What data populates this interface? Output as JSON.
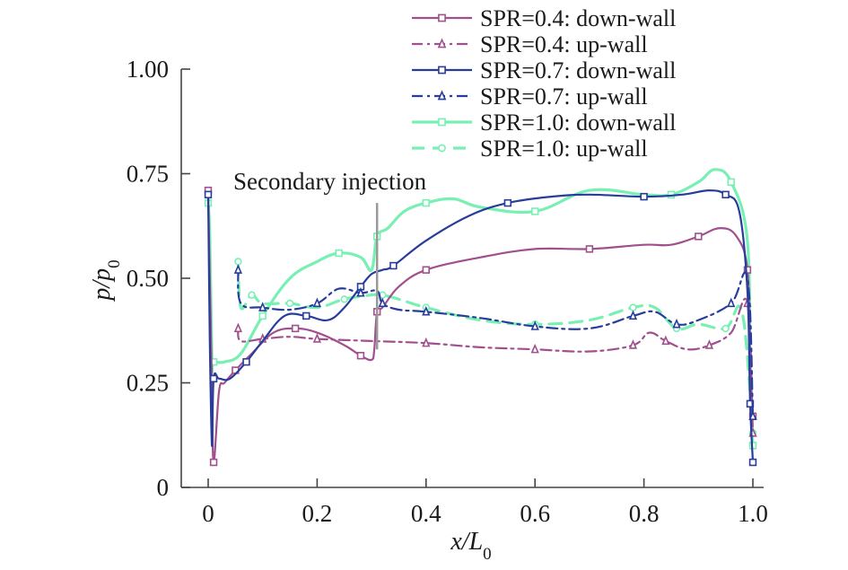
{
  "chart_data": {
    "type": "line",
    "title": "",
    "xlabel": "x/L0",
    "ylabel": "p/p0",
    "xlim": [
      -0.05,
      1.02
    ],
    "ylim": [
      0,
      1.0
    ],
    "xticks": [
      "0",
      "0.2",
      "0.4",
      "0.6",
      "0.8",
      "1.0"
    ],
    "xtick_values": [
      0,
      0.2,
      0.4,
      0.6,
      0.8,
      1.0
    ],
    "yticks": [
      "0",
      "0.25",
      "0.50",
      "0.75",
      "1.00"
    ],
    "ytick_values": [
      0,
      0.25,
      0.5,
      0.75,
      1.0
    ],
    "annotation": {
      "text": "Secondary injection",
      "x": 0.31
    },
    "legend_position": "top-right",
    "series": [
      {
        "name": "SPR=0.4: down-wall",
        "color": "#a0508c",
        "dash": "solid",
        "marker": "square",
        "x": [
          0,
          0.003,
          0.007,
          0.01,
          0.02,
          0.03,
          0.05,
          0.08,
          0.12,
          0.16,
          0.2,
          0.25,
          0.28,
          0.3,
          0.305,
          0.31,
          0.32,
          0.35,
          0.4,
          0.5,
          0.6,
          0.7,
          0.8,
          0.85,
          0.9,
          0.94,
          0.97,
          0.99,
          0.995,
          1.0
        ],
        "y": [
          0.71,
          0.5,
          0.25,
          0.06,
          0.23,
          0.25,
          0.28,
          0.32,
          0.37,
          0.38,
          0.37,
          0.34,
          0.315,
          0.305,
          0.33,
          0.42,
          0.43,
          0.48,
          0.52,
          0.55,
          0.57,
          0.57,
          0.58,
          0.58,
          0.6,
          0.62,
          0.6,
          0.52,
          0.3,
          0.17
        ]
      },
      {
        "name": "SPR=0.4: up-wall",
        "color": "#a0508c",
        "dash": "dashed",
        "marker": "triangle",
        "x": [
          0.055,
          0.06,
          0.1,
          0.15,
          0.2,
          0.3,
          0.4,
          0.5,
          0.6,
          0.7,
          0.78,
          0.81,
          0.84,
          0.88,
          0.92,
          0.96,
          0.99,
          1.0
        ],
        "y": [
          0.38,
          0.35,
          0.355,
          0.36,
          0.355,
          0.35,
          0.345,
          0.335,
          0.33,
          0.325,
          0.34,
          0.37,
          0.35,
          0.33,
          0.34,
          0.37,
          0.44,
          0.13
        ]
      },
      {
        "name": "SPR=0.7: down-wall",
        "color": "#283c9b",
        "dash": "solid",
        "marker": "square",
        "x": [
          0,
          0.003,
          0.007,
          0.01,
          0.02,
          0.04,
          0.07,
          0.1,
          0.14,
          0.18,
          0.22,
          0.25,
          0.28,
          0.3,
          0.32,
          0.34,
          0.4,
          0.48,
          0.55,
          0.63,
          0.7,
          0.8,
          0.87,
          0.92,
          0.95,
          0.975,
          0.99,
          0.995,
          1.0
        ],
        "y": [
          0.7,
          0.35,
          0.1,
          0.26,
          0.26,
          0.26,
          0.3,
          0.35,
          0.41,
          0.41,
          0.4,
          0.43,
          0.48,
          0.51,
          0.52,
          0.53,
          0.59,
          0.65,
          0.68,
          0.695,
          0.7,
          0.695,
          0.7,
          0.71,
          0.7,
          0.66,
          0.47,
          0.2,
          0.06
        ]
      },
      {
        "name": "SPR=0.7: up-wall",
        "color": "#283c9b",
        "dash": "dashed",
        "marker": "triangle",
        "x": [
          0.055,
          0.06,
          0.1,
          0.15,
          0.2,
          0.24,
          0.28,
          0.31,
          0.32,
          0.35,
          0.4,
          0.5,
          0.6,
          0.7,
          0.78,
          0.82,
          0.86,
          0.9,
          0.96,
          0.99,
          1.0
        ],
        "y": [
          0.52,
          0.44,
          0.43,
          0.425,
          0.44,
          0.475,
          0.465,
          0.47,
          0.44,
          0.425,
          0.42,
          0.405,
          0.385,
          0.38,
          0.41,
          0.42,
          0.39,
          0.4,
          0.44,
          0.5,
          0.17
        ]
      },
      {
        "name": "SPR=1.0: down-wall",
        "color": "#78f0b4",
        "dash": "solid",
        "marker": "square",
        "x": [
          0,
          0.003,
          0.007,
          0.01,
          0.03,
          0.06,
          0.1,
          0.15,
          0.2,
          0.24,
          0.28,
          0.3,
          0.31,
          0.33,
          0.36,
          0.4,
          0.45,
          0.5,
          0.6,
          0.7,
          0.8,
          0.85,
          0.9,
          0.93,
          0.96,
          0.99,
          0.995,
          1.0
        ],
        "y": [
          0.68,
          0.6,
          0.3,
          0.3,
          0.3,
          0.32,
          0.41,
          0.5,
          0.54,
          0.56,
          0.55,
          0.52,
          0.6,
          0.62,
          0.66,
          0.68,
          0.69,
          0.67,
          0.66,
          0.71,
          0.7,
          0.7,
          0.73,
          0.76,
          0.73,
          0.59,
          0.25,
          0.1
        ]
      },
      {
        "name": "SPR=1.0: up-wall",
        "color": "#78f0b4",
        "dash": "dashed",
        "marker": "circle",
        "x": [
          0.055,
          0.06,
          0.08,
          0.1,
          0.15,
          0.2,
          0.25,
          0.3,
          0.32,
          0.35,
          0.4,
          0.5,
          0.6,
          0.7,
          0.78,
          0.82,
          0.86,
          0.9,
          0.95,
          0.98,
          1.0
        ],
        "y": [
          0.54,
          0.43,
          0.46,
          0.44,
          0.44,
          0.43,
          0.45,
          0.46,
          0.46,
          0.45,
          0.43,
          0.4,
          0.39,
          0.4,
          0.43,
          0.43,
          0.38,
          0.39,
          0.38,
          0.42,
          0.13
        ]
      }
    ]
  }
}
